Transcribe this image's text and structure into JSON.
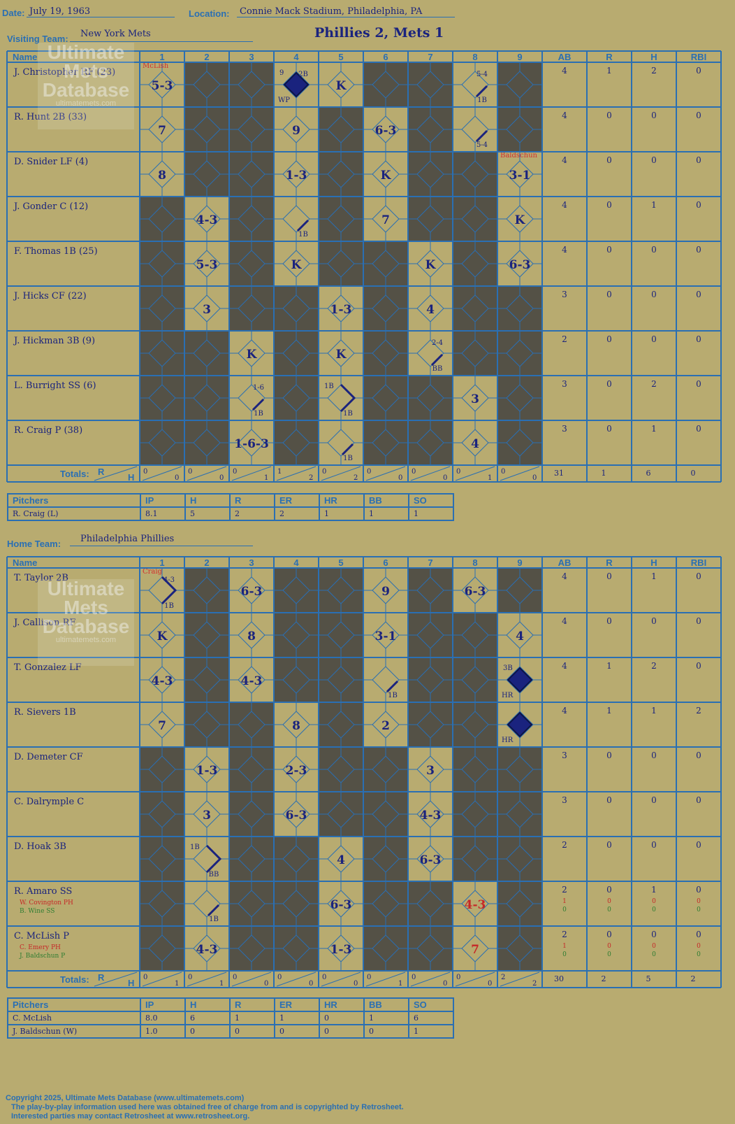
{
  "header": {
    "date_label": "Date:",
    "date": "July 19, 1963",
    "location_label": "Location:",
    "location": "Connie Mack Stadium, Philadelphia, PA",
    "visiting_label": "Visiting Team:",
    "visiting_team": "New York Mets",
    "result": "Phillies 2, Mets 1",
    "home_label": "Home Team:",
    "home_team": "Philadelphia Phillies"
  },
  "columns": [
    "Name",
    "1",
    "2",
    "3",
    "4",
    "5",
    "6",
    "7",
    "8",
    "9",
    "AB",
    "R",
    "H",
    "RBI"
  ],
  "totals_label": "Totals:",
  "rh_r": "R",
  "rh_h": "H",
  "watermark": {
    "line1": "Ultimate",
    "line2": "Mets",
    "line3": "Database",
    "url": "ultimatemets.com"
  },
  "visitors": {
    "rows": [
      {
        "name": "J. Christopher RF (23)",
        "dark": [
          2,
          3,
          6,
          7,
          9
        ],
        "ab": "4",
        "r": "1",
        "h": "2",
        "rbi": "0",
        "top": {
          "1": "McLish"
        }
      },
      {
        "name": "R. Hunt 2B (33)",
        "dark": [
          2,
          3,
          5,
          7,
          9
        ],
        "ab": "4",
        "r": "0",
        "h": "0",
        "rbi": "0"
      },
      {
        "name": "D. Snider LF (4)",
        "dark": [
          2,
          3,
          5,
          7,
          8
        ],
        "ab": "4",
        "r": "0",
        "h": "0",
        "rbi": "0",
        "top": {
          "9": "Baldschun"
        }
      },
      {
        "name": "J. Gonder C (12)",
        "dark": [
          1,
          3,
          5,
          7,
          8
        ],
        "ab": "4",
        "r": "0",
        "h": "1",
        "rbi": "0"
      },
      {
        "name": "F. Thomas 1B (25)",
        "dark": [
          1,
          3,
          5,
          6,
          8
        ],
        "ab": "4",
        "r": "0",
        "h": "0",
        "rbi": "0"
      },
      {
        "name": "J. Hicks CF (22)",
        "dark": [
          1,
          3,
          4,
          6,
          8,
          9
        ],
        "ab": "3",
        "r": "0",
        "h": "0",
        "rbi": "0"
      },
      {
        "name": "J. Hickman 3B (9)",
        "dark": [
          1,
          2,
          4,
          6,
          8,
          9
        ],
        "ab": "2",
        "r": "0",
        "h": "0",
        "rbi": "0"
      },
      {
        "name": "L. Burright SS (6)",
        "dark": [
          1,
          2,
          4,
          6,
          7,
          9
        ],
        "ab": "3",
        "r": "0",
        "h": "2",
        "rbi": "0"
      },
      {
        "name": "R. Craig P (38)",
        "dark": [
          1,
          2,
          4,
          6,
          7,
          9
        ],
        "ab": "3",
        "r": "0",
        "h": "1",
        "rbi": "0"
      }
    ],
    "plays": [
      {
        "row": 0,
        "inn": 1,
        "t": "5-3"
      },
      {
        "row": 0,
        "inn": 4,
        "t": "",
        "run": true,
        "tr": "2B",
        "tl": "9",
        "bl": "WP"
      },
      {
        "row": 0,
        "inn": 5,
        "t": "K"
      },
      {
        "row": 0,
        "inn": 8,
        "t": "",
        "hit": true,
        "tr": "5-4",
        "br": "1B"
      },
      {
        "row": 1,
        "inn": 1,
        "t": "7"
      },
      {
        "row": 1,
        "inn": 4,
        "t": "9"
      },
      {
        "row": 1,
        "inn": 6,
        "t": "6-3"
      },
      {
        "row": 1,
        "inn": 8,
        "t": "",
        "hit": true,
        "br": "5-4"
      },
      {
        "row": 2,
        "inn": 1,
        "t": "8"
      },
      {
        "row": 2,
        "inn": 4,
        "t": "1-3"
      },
      {
        "row": 2,
        "inn": 6,
        "t": "K"
      },
      {
        "row": 2,
        "inn": 9,
        "t": "3-1"
      },
      {
        "row": 3,
        "inn": 2,
        "t": "4-3"
      },
      {
        "row": 3,
        "inn": 4,
        "t": "",
        "hit": true,
        "br": "1B"
      },
      {
        "row": 3,
        "inn": 6,
        "t": "7"
      },
      {
        "row": 3,
        "inn": 9,
        "t": "K"
      },
      {
        "row": 4,
        "inn": 2,
        "t": "5-3"
      },
      {
        "row": 4,
        "inn": 4,
        "t": "K"
      },
      {
        "row": 4,
        "inn": 7,
        "t": "K"
      },
      {
        "row": 4,
        "inn": 9,
        "t": "6-3"
      },
      {
        "row": 5,
        "inn": 2,
        "t": "3"
      },
      {
        "row": 5,
        "inn": 5,
        "t": "1-3"
      },
      {
        "row": 5,
        "inn": 7,
        "t": "4"
      },
      {
        "row": 6,
        "inn": 3,
        "t": "K"
      },
      {
        "row": 6,
        "inn": 5,
        "t": "K"
      },
      {
        "row": 6,
        "inn": 7,
        "t": "",
        "hit": true,
        "tr": "2-4",
        "br": "BB"
      },
      {
        "row": 7,
        "inn": 3,
        "t": "",
        "hit": true,
        "tr": "1-6",
        "br": "1B"
      },
      {
        "row": 7,
        "inn": 5,
        "t": "",
        "second": true,
        "tl": "1B",
        "br": "1B"
      },
      {
        "row": 7,
        "inn": 8,
        "t": "3"
      },
      {
        "row": 8,
        "inn": 3,
        "t": "1-6-3"
      },
      {
        "row": 8,
        "inn": 5,
        "t": "",
        "hit": true,
        "br": "1B"
      },
      {
        "row": 8,
        "inn": 8,
        "t": "4"
      }
    ],
    "inning_totals": [
      [
        "0",
        "0"
      ],
      [
        "0",
        "0"
      ],
      [
        "0",
        "1"
      ],
      [
        "1",
        "2"
      ],
      [
        "0",
        "2"
      ],
      [
        "0",
        "0"
      ],
      [
        "0",
        "0"
      ],
      [
        "0",
        "1"
      ],
      [
        "0",
        "0"
      ]
    ],
    "totals": {
      "ab": "31",
      "r": "1",
      "h": "6",
      "rbi": "0"
    },
    "pitchers_header": [
      "Pitchers",
      "IP",
      "H",
      "R",
      "ER",
      "HR",
      "BB",
      "SO"
    ],
    "pitchers": [
      [
        "R. Craig (L)",
        "8.1",
        "5",
        "2",
        "2",
        "1",
        "1",
        "1"
      ]
    ]
  },
  "home": {
    "rows": [
      {
        "name": "T. Taylor 2B",
        "dark": [
          2,
          4,
          5,
          7,
          9
        ],
        "ab": "4",
        "r": "0",
        "h": "1",
        "rbi": "0",
        "top": {
          "1": "Craig"
        }
      },
      {
        "name": "J. Callison RF",
        "dark": [
          2,
          4,
          5,
          7,
          8
        ],
        "ab": "4",
        "r": "0",
        "h": "0",
        "rbi": "0"
      },
      {
        "name": "T. Gonzalez LF",
        "dark": [
          2,
          4,
          5,
          7,
          8
        ],
        "ab": "4",
        "r": "1",
        "h": "2",
        "rbi": "0"
      },
      {
        "name": "R. Sievers 1B",
        "dark": [
          2,
          3,
          5,
          7,
          8
        ],
        "ab": "4",
        "r": "1",
        "h": "1",
        "rbi": "2"
      },
      {
        "name": "D. Demeter CF",
        "dark": [
          1,
          3,
          5,
          6,
          8,
          9
        ],
        "ab": "3",
        "r": "0",
        "h": "0",
        "rbi": "0"
      },
      {
        "name": "C. Dalrymple C",
        "dark": [
          1,
          3,
          5,
          6,
          8,
          9
        ],
        "ab": "3",
        "r": "0",
        "h": "0",
        "rbi": "0"
      },
      {
        "name": "D. Hoak 3B",
        "dark": [
          1,
          3,
          4,
          6,
          8,
          9
        ],
        "ab": "2",
        "r": "0",
        "h": "0",
        "rbi": "0"
      },
      {
        "name": "R. Amaro SS",
        "dark": [
          1,
          3,
          4,
          6,
          7,
          9
        ],
        "ab": "2",
        "r": "0",
        "h": "1",
        "rbi": "0",
        "subs": [
          {
            "name": "W. Covington PH",
            "color": "#c62828",
            "ab": "1",
            "r": "0",
            "h": "0",
            "rbi": "0"
          },
          {
            "name": "B. Wine SS",
            "color": "#2e7d32",
            "ab": "0",
            "r": "0",
            "h": "0",
            "rbi": "0"
          }
        ]
      },
      {
        "name": "C. McLish P",
        "dark": [
          1,
          3,
          4,
          6,
          7,
          9
        ],
        "ab": "2",
        "r": "0",
        "h": "0",
        "rbi": "0",
        "subs": [
          {
            "name": "C. Emery PH",
            "color": "#c62828",
            "ab": "1",
            "r": "0",
            "h": "0",
            "rbi": "0"
          },
          {
            "name": "J. Baldschun P",
            "color": "#2e7d32",
            "ab": "0",
            "r": "0",
            "h": "0",
            "rbi": "0"
          }
        ]
      }
    ],
    "plays": [
      {
        "row": 0,
        "inn": 1,
        "t": "",
        "second": true,
        "tr": "4-3",
        "br": "1B"
      },
      {
        "row": 0,
        "inn": 3,
        "t": "6-3"
      },
      {
        "row": 0,
        "inn": 6,
        "t": "9"
      },
      {
        "row": 0,
        "inn": 8,
        "t": "6-3"
      },
      {
        "row": 1,
        "inn": 1,
        "t": "K"
      },
      {
        "row": 1,
        "inn": 3,
        "t": "8"
      },
      {
        "row": 1,
        "inn": 6,
        "t": "3-1"
      },
      {
        "row": 1,
        "inn": 9,
        "t": "4"
      },
      {
        "row": 2,
        "inn": 1,
        "t": "4-3"
      },
      {
        "row": 2,
        "inn": 3,
        "t": "4-3"
      },
      {
        "row": 2,
        "inn": 6,
        "t": "",
        "hit": true,
        "br": "1B"
      },
      {
        "row": 2,
        "inn": 9,
        "t": "",
        "run": true,
        "tl": "3B",
        "bl": "HR"
      },
      {
        "row": 3,
        "inn": 1,
        "t": "7"
      },
      {
        "row": 3,
        "inn": 4,
        "t": "8"
      },
      {
        "row": 3,
        "inn": 6,
        "t": "2"
      },
      {
        "row": 3,
        "inn": 9,
        "t": "",
        "run": true,
        "bl": "HR"
      },
      {
        "row": 4,
        "inn": 2,
        "t": "1-3"
      },
      {
        "row": 4,
        "inn": 4,
        "t": "2-3"
      },
      {
        "row": 4,
        "inn": 7,
        "t": "3"
      },
      {
        "row": 5,
        "inn": 2,
        "t": "3"
      },
      {
        "row": 5,
        "inn": 4,
        "t": "6-3"
      },
      {
        "row": 5,
        "inn": 7,
        "t": "4-3"
      },
      {
        "row": 6,
        "inn": 2,
        "t": "",
        "second": true,
        "tl": "1B",
        "br": "BB"
      },
      {
        "row": 6,
        "inn": 5,
        "t": "4"
      },
      {
        "row": 6,
        "inn": 7,
        "t": "6-3"
      },
      {
        "row": 7,
        "inn": 2,
        "t": "",
        "hit": true,
        "br": "1B"
      },
      {
        "row": 7,
        "inn": 5,
        "t": "6-3"
      },
      {
        "row": 7,
        "inn": 8,
        "t": "4-3",
        "red": true
      },
      {
        "row": 8,
        "inn": 2,
        "t": "4-3"
      },
      {
        "row": 8,
        "inn": 5,
        "t": "1-3"
      },
      {
        "row": 8,
        "inn": 8,
        "t": "7",
        "red": true
      }
    ],
    "inning_totals": [
      [
        "0",
        "1"
      ],
      [
        "0",
        "1"
      ],
      [
        "0",
        "0"
      ],
      [
        "0",
        "0"
      ],
      [
        "0",
        "0"
      ],
      [
        "0",
        "1"
      ],
      [
        "0",
        "0"
      ],
      [
        "0",
        "0"
      ],
      [
        "2",
        "2"
      ]
    ],
    "totals": {
      "ab": "30",
      "r": "2",
      "h": "5",
      "rbi": "2"
    },
    "pitchers_header": [
      "Pitchers",
      "IP",
      "H",
      "R",
      "ER",
      "HR",
      "BB",
      "SO"
    ],
    "pitchers": [
      [
        "C. McLish",
        "8.0",
        "6",
        "1",
        "1",
        "0",
        "1",
        "6"
      ],
      [
        "J. Baldschun (W)",
        "1.0",
        "0",
        "0",
        "0",
        "0",
        "0",
        "1"
      ]
    ]
  },
  "copyright": [
    "Copyright 2025, Ultimate Mets Database (www.ultimatemets.com)",
    "The play-by-play information used here was obtained free of charge from and is copyrighted by Retrosheet.",
    "Interested parties may contact Retrosheet at www.retrosheet.org."
  ]
}
